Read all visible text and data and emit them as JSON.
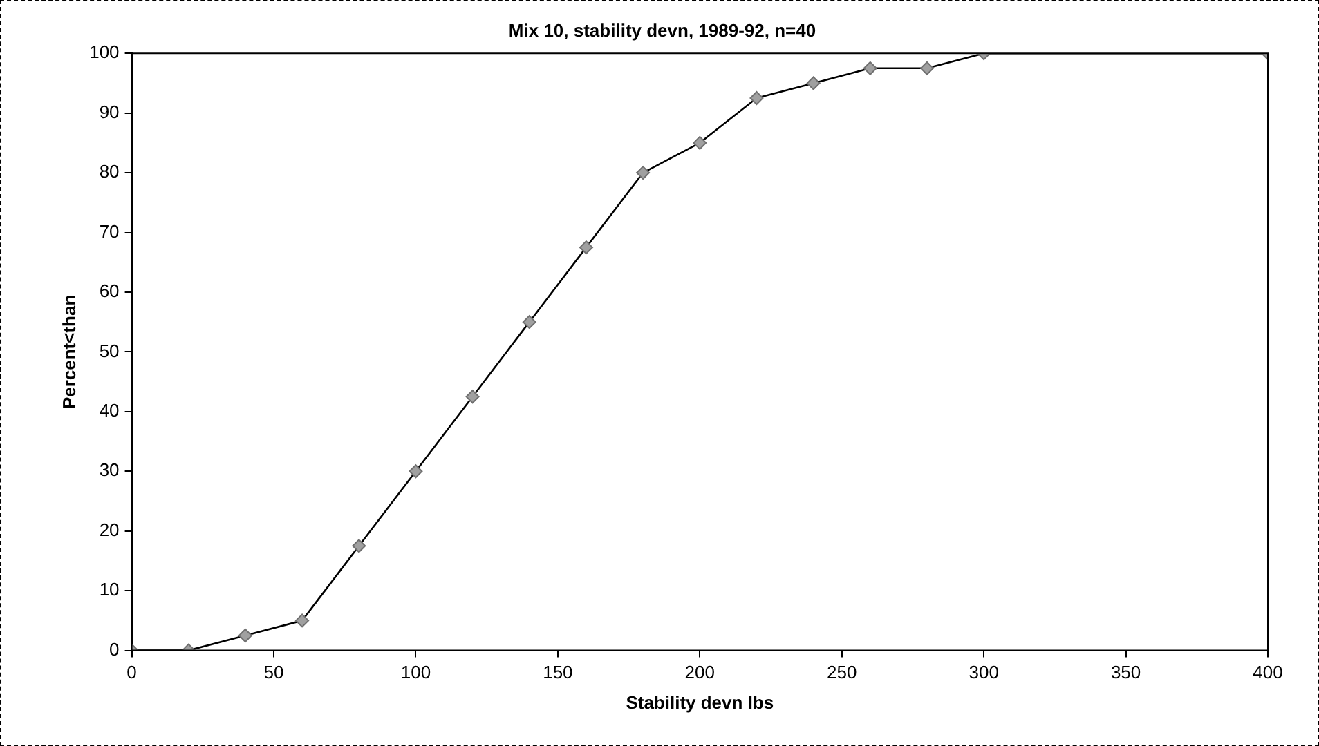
{
  "chart_data": {
    "type": "line",
    "title": "Mix 10, stability devn, 1989-92, n=40",
    "xlabel": "Stability devn lbs",
    "ylabel": "Percent<than",
    "x": [
      0,
      20,
      40,
      60,
      80,
      100,
      120,
      140,
      160,
      180,
      200,
      220,
      240,
      260,
      280,
      300,
      400
    ],
    "series": [
      {
        "color": "#000000",
        "values": [
          0,
          0,
          2.5,
          5,
          17.5,
          30,
          42.5,
          55,
          67.5,
          80,
          85,
          92.5,
          95,
          97.5,
          97.5,
          100,
          100
        ]
      }
    ],
    "xlim": [
      0,
      400
    ],
    "xticks": [
      0,
      50,
      100,
      150,
      200,
      250,
      300,
      350,
      400
    ],
    "ylim": [
      0,
      100
    ],
    "yticks": [
      0,
      10,
      20,
      30,
      40,
      50,
      60,
      70,
      80,
      90,
      100
    ],
    "grid": false,
    "legend": false,
    "marker": "diamond",
    "line_style": "solid"
  }
}
